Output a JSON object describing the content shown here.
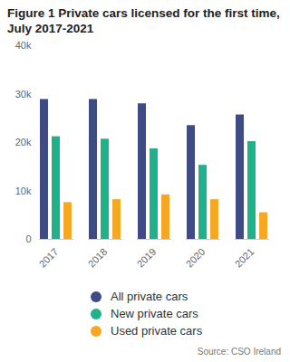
{
  "chart_data": {
    "type": "bar",
    "title": "Figure 1 Private cars licensed for the first time, July 2017-2021",
    "source": "Source: CSO Ireland",
    "categories": [
      "2017",
      "2018",
      "2019",
      "2020",
      "2021"
    ],
    "series": [
      {
        "name": "All private cars",
        "color": "#3e4b85",
        "values": [
          28900,
          28900,
          28000,
          23500,
          25700
        ]
      },
      {
        "name": "New private cars",
        "color": "#1fb28a",
        "values": [
          21200,
          20700,
          18700,
          15300,
          20200
        ]
      },
      {
        "name": "Used private cars",
        "color": "#f7a823",
        "values": [
          7600,
          8200,
          9200,
          8200,
          5500
        ]
      }
    ],
    "ylim": [
      0,
      40000
    ],
    "yticks": [
      0,
      {
        "value": 10000,
        "label": "10k"
      },
      {
        "value": 20000,
        "label": "20k"
      },
      {
        "value": 30000,
        "label": "30k"
      },
      {
        "value": 40000,
        "label": "40k"
      }
    ],
    "grid": false,
    "legend": "bottom"
  }
}
